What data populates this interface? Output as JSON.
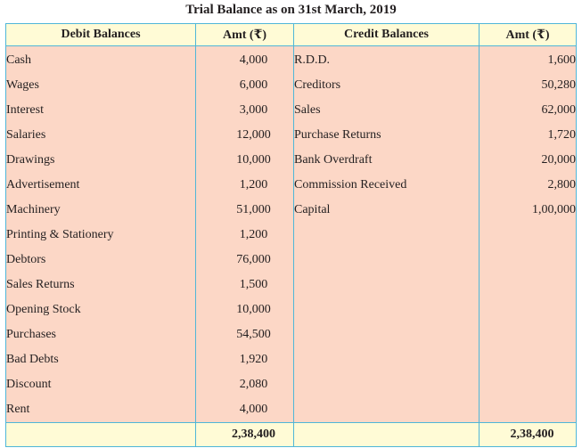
{
  "title": "Trial Balance as on 31st March, 2019",
  "headers": {
    "debit": "Debit Balances",
    "debit_amt": "Amt (₹)",
    "credit": "Credit Balances",
    "credit_amt": "Amt (₹)"
  },
  "rows": [
    {
      "debit": "Cash",
      "debit_amt": "4,000",
      "credit": "R.D.D.",
      "credit_amt": "1,600"
    },
    {
      "debit": "Wages",
      "debit_amt": "6,000",
      "credit": "Creditors",
      "credit_amt": "50,280"
    },
    {
      "debit": "Interest",
      "debit_amt": "3,000",
      "credit": "Sales",
      "credit_amt": "62,000"
    },
    {
      "debit": "Salaries",
      "debit_amt": "12,000",
      "credit": "Purchase Returns",
      "credit_amt": "1,720"
    },
    {
      "debit": "Drawings",
      "debit_amt": "10,000",
      "credit": "Bank Overdraft",
      "credit_amt": "20,000"
    },
    {
      "debit": "Advertisement",
      "debit_amt": "1,200",
      "credit": "Commission Received",
      "credit_amt": "2,800"
    },
    {
      "debit": "Machinery",
      "debit_amt": "51,000",
      "credit": "Capital",
      "credit_amt": "1,00,000"
    },
    {
      "debit": "Printing & Stationery",
      "debit_amt": "1,200",
      "credit": "",
      "credit_amt": ""
    },
    {
      "debit": "Debtors",
      "debit_amt": "76,000",
      "credit": "",
      "credit_amt": ""
    },
    {
      "debit": "Sales Returns",
      "debit_amt": "1,500",
      "credit": "",
      "credit_amt": ""
    },
    {
      "debit": "Opening Stock",
      "debit_amt": "10,000",
      "credit": "",
      "credit_amt": ""
    },
    {
      "debit": "Purchases",
      "debit_amt": "54,500",
      "credit": "",
      "credit_amt": ""
    },
    {
      "debit": "Bad Debts",
      "debit_amt": "1,920",
      "credit": "",
      "credit_amt": ""
    },
    {
      "debit": "Discount",
      "debit_amt": "2,080",
      "credit": "",
      "credit_amt": ""
    },
    {
      "debit": "Rent",
      "debit_amt": "4,000",
      "credit": "",
      "credit_amt": ""
    }
  ],
  "totals": {
    "debit_total": "2,38,400",
    "credit_total": "2,38,400"
  }
}
